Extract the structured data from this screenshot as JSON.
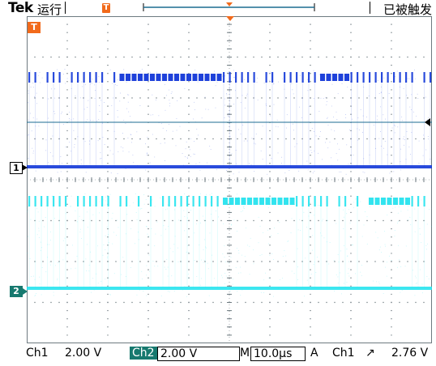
{
  "header": {
    "brand": "Tek",
    "run_state": "运行",
    "trigger_marker": "T",
    "trigger_status": "已被触发"
  },
  "markers": {
    "trigger_T": "T",
    "ch1": "1",
    "ch2": "2"
  },
  "footer": {
    "ch1_label": "Ch1",
    "ch1_scale": "2.00 V",
    "ch2_label": "Ch2",
    "ch2_scale": "2.00 V",
    "time_label": "M",
    "time_scale": "10.0µs",
    "trig_label": "A",
    "trig_source": "Ch1",
    "trig_slope_symbol": "↗",
    "trig_level": "2.76 V"
  },
  "colors": {
    "ch1": "#1237d8",
    "ch2": "#27e3ee",
    "trigger": "#f26a1b",
    "grid": "#6e7a80",
    "ch2_badge": "#17796f"
  }
}
